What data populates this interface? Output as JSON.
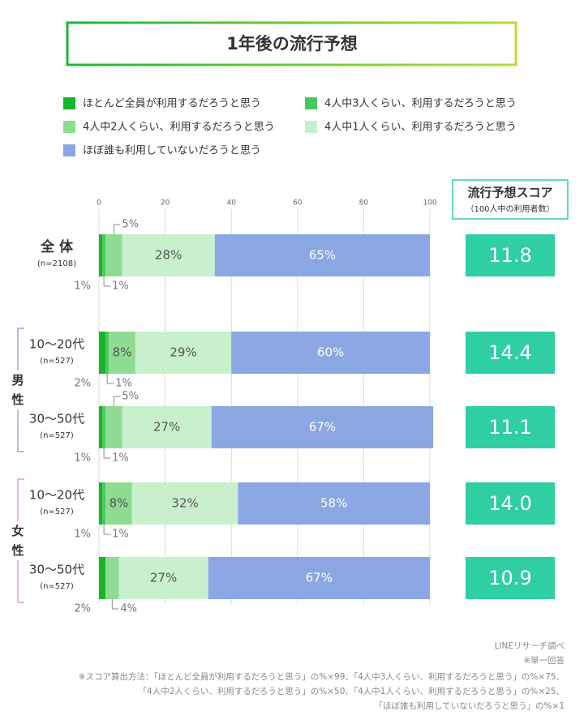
{
  "chart_data": {
    "type": "stacked-barh",
    "title": "1年後の流行予想",
    "categories": [
      "全 体",
      "10〜20代",
      "30〜50代",
      "10〜20代",
      "30〜50代"
    ],
    "category_notes": [
      "(n=2108)",
      "(n=527)",
      "(n=527)",
      "(n=527)",
      "(n=527)"
    ],
    "groups": [
      {
        "label": "男性",
        "rows": [
          1,
          2
        ],
        "color": "#7a96d8"
      },
      {
        "label": "女性",
        "rows": [
          3,
          4
        ],
        "color": "#f08a8a"
      }
    ],
    "series": [
      {
        "name": "ほとんど全員が利用するだろうと思う",
        "color": "#18b42a",
        "values": [
          1,
          2,
          1,
          1,
          2
        ],
        "value_labels": [
          "1%",
          "2%",
          "1%",
          "1%",
          "2%"
        ]
      },
      {
        "name": "4人中3人くらい、利用するだろうと思う",
        "color": "#4cc85a",
        "values": [
          1,
          1,
          1,
          1,
          0
        ],
        "value_labels": [
          "1%",
          "1%",
          "1%",
          "1%",
          null
        ]
      },
      {
        "name": "4人中2人くらい、利用するだろうと思う",
        "color": "#8edc92",
        "values": [
          5,
          8,
          5,
          8,
          4
        ],
        "value_labels": [
          "5%",
          "8%",
          "5%",
          "8%",
          "4%"
        ]
      },
      {
        "name": "4人中1人くらい、利用するだろうと思う",
        "color": "#c9f0cc",
        "values": [
          28,
          29,
          27,
          32,
          27
        ],
        "value_labels": [
          "28%",
          "29%",
          "27%",
          "32%",
          "27%"
        ]
      },
      {
        "name": "ほぼ誰も利用していないだろうと思う",
        "color": "#8ba7e3",
        "values": [
          65,
          60,
          67,
          58,
          67
        ],
        "value_labels": [
          "65%",
          "60%",
          "67%",
          "58%",
          "67%"
        ]
      }
    ],
    "xlim": [
      0,
      100
    ],
    "xticks": [
      0,
      20,
      40,
      60,
      80,
      100
    ],
    "score": {
      "title": "流行予想スコア",
      "subtitle": "（100人中の利用者数）",
      "color": "#2fcfa3",
      "values": [
        11.8,
        14.4,
        11.1,
        14,
        10.9
      ],
      "value_labels": [
        "11.8",
        "14.4",
        "11.1",
        "14.0",
        "10.9"
      ]
    },
    "notes": [
      "LINEリサーチ調べ",
      "※単一回答",
      "※スコア算出方法：「ほとんど全員が利用するだろうと思う」の%×99、「4人中3人くらい、利用するだろうと思う」の%×75、",
      "「4人中2人くらい、利用するだろうと思う」の%×50、「4人中1人くらい、利用するだろうと思う」の%×25、",
      "「ほぼ誰も利用していないだろうと思う」の%×1"
    ]
  }
}
